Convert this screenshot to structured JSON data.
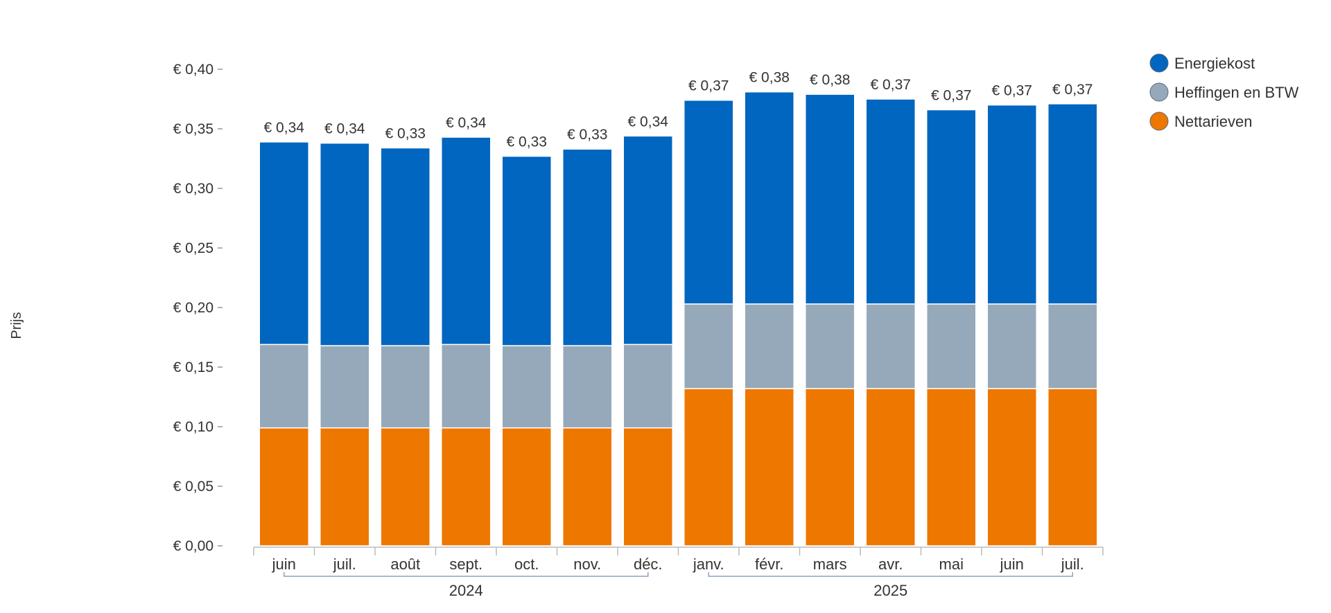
{
  "chart_data": {
    "type": "bar",
    "stacked": true,
    "categories": [
      "juin",
      "juil.",
      "août",
      "sept.",
      "oct.",
      "nov.",
      "déc.",
      "janv.",
      "févr.",
      "mars",
      "avr.",
      "mai",
      "juin",
      "juil."
    ],
    "groups": [
      {
        "label": "2024",
        "from": 0,
        "to": 6
      },
      {
        "label": "2025",
        "from": 7,
        "to": 13
      }
    ],
    "series": [
      {
        "name": "Nettarieven",
        "color": "#ee7700",
        "values": [
          0.099,
          0.099,
          0.099,
          0.099,
          0.099,
          0.099,
          0.099,
          0.132,
          0.132,
          0.132,
          0.132,
          0.132,
          0.132,
          0.132
        ]
      },
      {
        "name": "Heffingen en BTW",
        "color": "#96a9ba",
        "values": [
          0.07,
          0.069,
          0.069,
          0.07,
          0.069,
          0.069,
          0.07,
          0.071,
          0.071,
          0.071,
          0.071,
          0.071,
          0.071,
          0.071
        ]
      },
      {
        "name": "Energiekost",
        "color": "#0066bf",
        "values": [
          0.17,
          0.17,
          0.166,
          0.174,
          0.159,
          0.165,
          0.175,
          0.171,
          0.178,
          0.176,
          0.172,
          0.163,
          0.167,
          0.168
        ]
      }
    ],
    "totals_labels": [
      "€ 0,34",
      "€ 0,34",
      "€ 0,33",
      "€ 0,34",
      "€ 0,33",
      "€ 0,33",
      "€ 0,34",
      "€ 0,37",
      "€ 0,38",
      "€ 0,38",
      "€ 0,37",
      "€ 0,37",
      "€ 0,37",
      "€ 0,37"
    ],
    "yticks": [
      0,
      0.05,
      0.1,
      0.15,
      0.2,
      0.25,
      0.3,
      0.35,
      0.4
    ],
    "ytick_labels": [
      "€ 0,00",
      "€ 0,05",
      "€ 0,10",
      "€ 0,15",
      "€ 0,20",
      "€ 0,25",
      "€ 0,30",
      "€ 0,35",
      "€ 0,40"
    ],
    "ylim": [
      0,
      0.4
    ],
    "ylabel": "Prijs",
    "xlabel": "",
    "title": "",
    "legend": {
      "position": "top-right",
      "order": [
        "Energiekost",
        "Heffingen en BTW",
        "Nettarieven"
      ]
    },
    "grid": false
  }
}
